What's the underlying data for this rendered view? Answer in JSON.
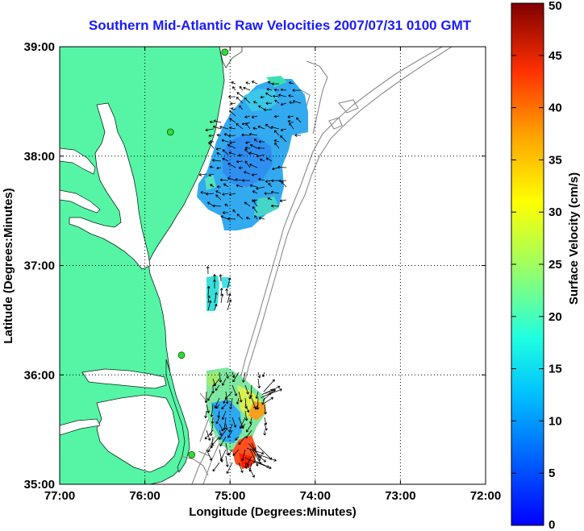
{
  "title": "Southern Mid-Atlantic Raw Velocities 2007/07/31 0100 GMT",
  "map": {
    "xlabel": "Longitude (Degrees:Minutes)",
    "ylabel": "Latitude (Degrees:Minutes)",
    "x_ticks": [
      "77:00",
      "76:00",
      "75:00",
      "74:00",
      "73:00",
      "72:00"
    ],
    "y_ticks": [
      "39:00",
      "38:00",
      "37:00",
      "36:00",
      "35:00"
    ],
    "lon_range": [
      -77,
      -72
    ],
    "lat_range": [
      35,
      39
    ],
    "land_color": "#55f5a5",
    "contour_color": "#8a8a8a",
    "grid": "dotted"
  },
  "colorbar": {
    "label": "Surface Velocity (cm/s)",
    "ticks": [
      "50",
      "45",
      "40",
      "35",
      "30",
      "25",
      "20",
      "15",
      "10",
      "5",
      "0"
    ],
    "range": [
      0,
      50
    ],
    "colormap": "jet"
  },
  "stations": [
    {
      "lon": -75.06,
      "lat": 38.95
    },
    {
      "lon": -75.7,
      "lat": 38.22
    },
    {
      "lon": -75.57,
      "lat": 36.18
    },
    {
      "lon": -75.45,
      "lat": 35.27
    }
  ]
}
